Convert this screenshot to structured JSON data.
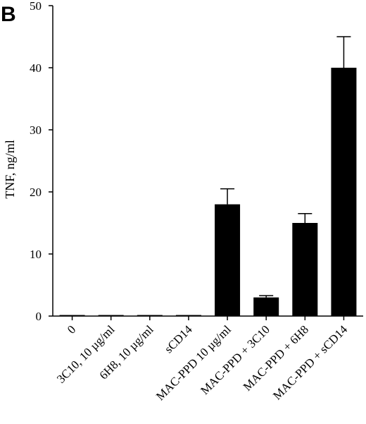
{
  "panel_label": "B",
  "chart_data": {
    "type": "bar",
    "ylabel": "TNF, ng/ml",
    "xlabel": "",
    "ylim": [
      0,
      50
    ],
    "yticks": [
      "0",
      "10",
      "20",
      "30",
      "40",
      "50"
    ],
    "categories": [
      "0",
      "3C10, 10 µg/ml",
      "6H8, 10 µg/ml",
      "sCD14",
      "MAC-PPD 10 µg/ml",
      "MAC-PPD + 3C10",
      "MAC-PPD + 6H8",
      "MAC-PPD + sCD14"
    ],
    "values": [
      0.1,
      0.1,
      0.1,
      0.1,
      18,
      3,
      15,
      40
    ],
    "errors": [
      0,
      0,
      0,
      0,
      2.5,
      0.3,
      1.5,
      5
    ],
    "bar_color": "#000000",
    "grid": false
  }
}
